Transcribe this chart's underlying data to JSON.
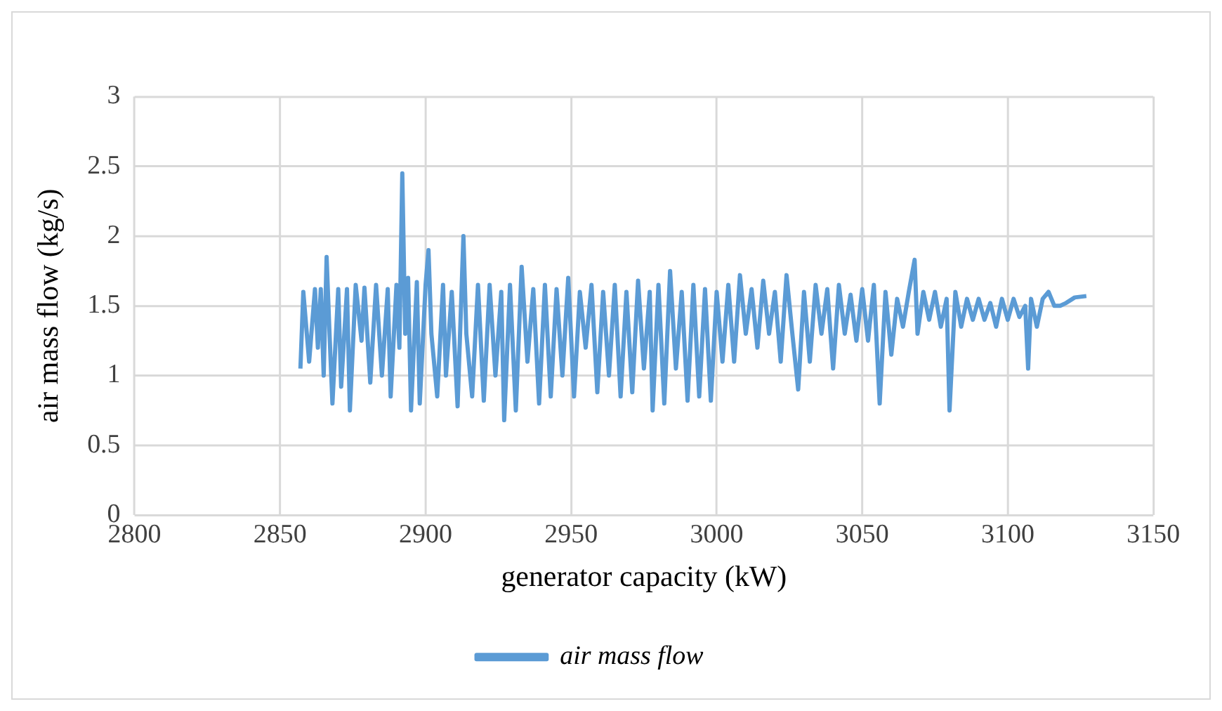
{
  "chart_data": {
    "type": "line",
    "xlabel": "generator capacity (kW)",
    "ylabel": "air mass flow (kg/s)",
    "xlim": [
      2800,
      3150
    ],
    "xticks": [
      2800,
      2850,
      2900,
      2950,
      3000,
      3050,
      3100,
      3150
    ],
    "ylim": [
      0,
      3
    ],
    "yticks": [
      0,
      0.5,
      1,
      1.5,
      2,
      2.5,
      3
    ],
    "grid": true,
    "legend": "bottom",
    "marker": "none",
    "line_style": "solid",
    "series": [
      {
        "name": "air mass flow",
        "color": "#5b9bd5",
        "x": [
          2857,
          2858,
          2860,
          2862,
          2863,
          2864,
          2865,
          2866,
          2867,
          2868,
          2870,
          2871,
          2873,
          2874,
          2876,
          2878,
          2879,
          2881,
          2883,
          2885,
          2887,
          2888,
          2890,
          2891,
          2892,
          2893,
          2894,
          2895,
          2897,
          2898,
          2900,
          2901,
          2902,
          2904,
          2906,
          2907,
          2909,
          2911,
          2913,
          2914,
          2916,
          2918,
          2920,
          2922,
          2924,
          2926,
          2927,
          2929,
          2931,
          2933,
          2935,
          2937,
          2939,
          2941,
          2943,
          2945,
          2947,
          2949,
          2951,
          2953,
          2955,
          2957,
          2959,
          2961,
          2963,
          2965,
          2967,
          2969,
          2971,
          2973,
          2975,
          2977,
          2978,
          2980,
          2982,
          2984,
          2986,
          2988,
          2990,
          2992,
          2994,
          2996,
          2998,
          3000,
          3002,
          3004,
          3006,
          3008,
          3010,
          3012,
          3014,
          3016,
          3018,
          3020,
          3022,
          3024,
          3026,
          3028,
          3030,
          3032,
          3034,
          3036,
          3038,
          3040,
          3042,
          3044,
          3046,
          3048,
          3050,
          3052,
          3054,
          3056,
          3058,
          3060,
          3062,
          3064,
          3066,
          3068,
          3069,
          3071,
          3073,
          3075,
          3077,
          3079,
          3080,
          3082,
          3084,
          3086,
          3088,
          3090,
          3092,
          3094,
          3096,
          3098,
          3100,
          3102,
          3104,
          3106,
          3107,
          3108,
          3110,
          3112,
          3114,
          3116,
          3118,
          3120,
          3123,
          3127
        ],
        "values": [
          1.05,
          1.6,
          1.1,
          1.62,
          1.2,
          1.62,
          1.0,
          1.85,
          1.3,
          0.8,
          1.62,
          0.92,
          1.62,
          0.75,
          1.65,
          1.25,
          1.63,
          0.95,
          1.65,
          1.0,
          1.62,
          0.85,
          1.65,
          1.2,
          2.45,
          1.3,
          1.7,
          0.75,
          1.67,
          0.8,
          1.65,
          1.9,
          1.3,
          0.85,
          1.65,
          1.0,
          1.6,
          0.78,
          2.0,
          1.3,
          0.85,
          1.65,
          0.82,
          1.65,
          1.0,
          1.6,
          0.68,
          1.65,
          0.75,
          1.78,
          1.1,
          1.62,
          0.8,
          1.65,
          0.85,
          1.62,
          1.0,
          1.7,
          0.85,
          1.6,
          1.2,
          1.65,
          0.88,
          1.6,
          1.0,
          1.65,
          0.85,
          1.6,
          0.88,
          1.68,
          1.05,
          1.6,
          0.75,
          1.65,
          0.8,
          1.75,
          1.05,
          1.6,
          0.82,
          1.65,
          0.85,
          1.62,
          0.82,
          1.6,
          1.1,
          1.65,
          1.1,
          1.72,
          1.3,
          1.62,
          1.2,
          1.68,
          1.3,
          1.6,
          1.1,
          1.72,
          1.3,
          0.9,
          1.6,
          1.1,
          1.65,
          1.3,
          1.62,
          1.05,
          1.65,
          1.3,
          1.58,
          1.25,
          1.62,
          1.25,
          1.65,
          0.8,
          1.6,
          1.15,
          1.55,
          1.35,
          1.6,
          1.83,
          1.3,
          1.6,
          1.4,
          1.6,
          1.35,
          1.55,
          0.75,
          1.6,
          1.35,
          1.55,
          1.4,
          1.55,
          1.4,
          1.52,
          1.35,
          1.55,
          1.4,
          1.55,
          1.42,
          1.5,
          1.05,
          1.55,
          1.35,
          1.55,
          1.6,
          1.5,
          1.5,
          1.52,
          1.56,
          1.57
        ]
      }
    ]
  }
}
